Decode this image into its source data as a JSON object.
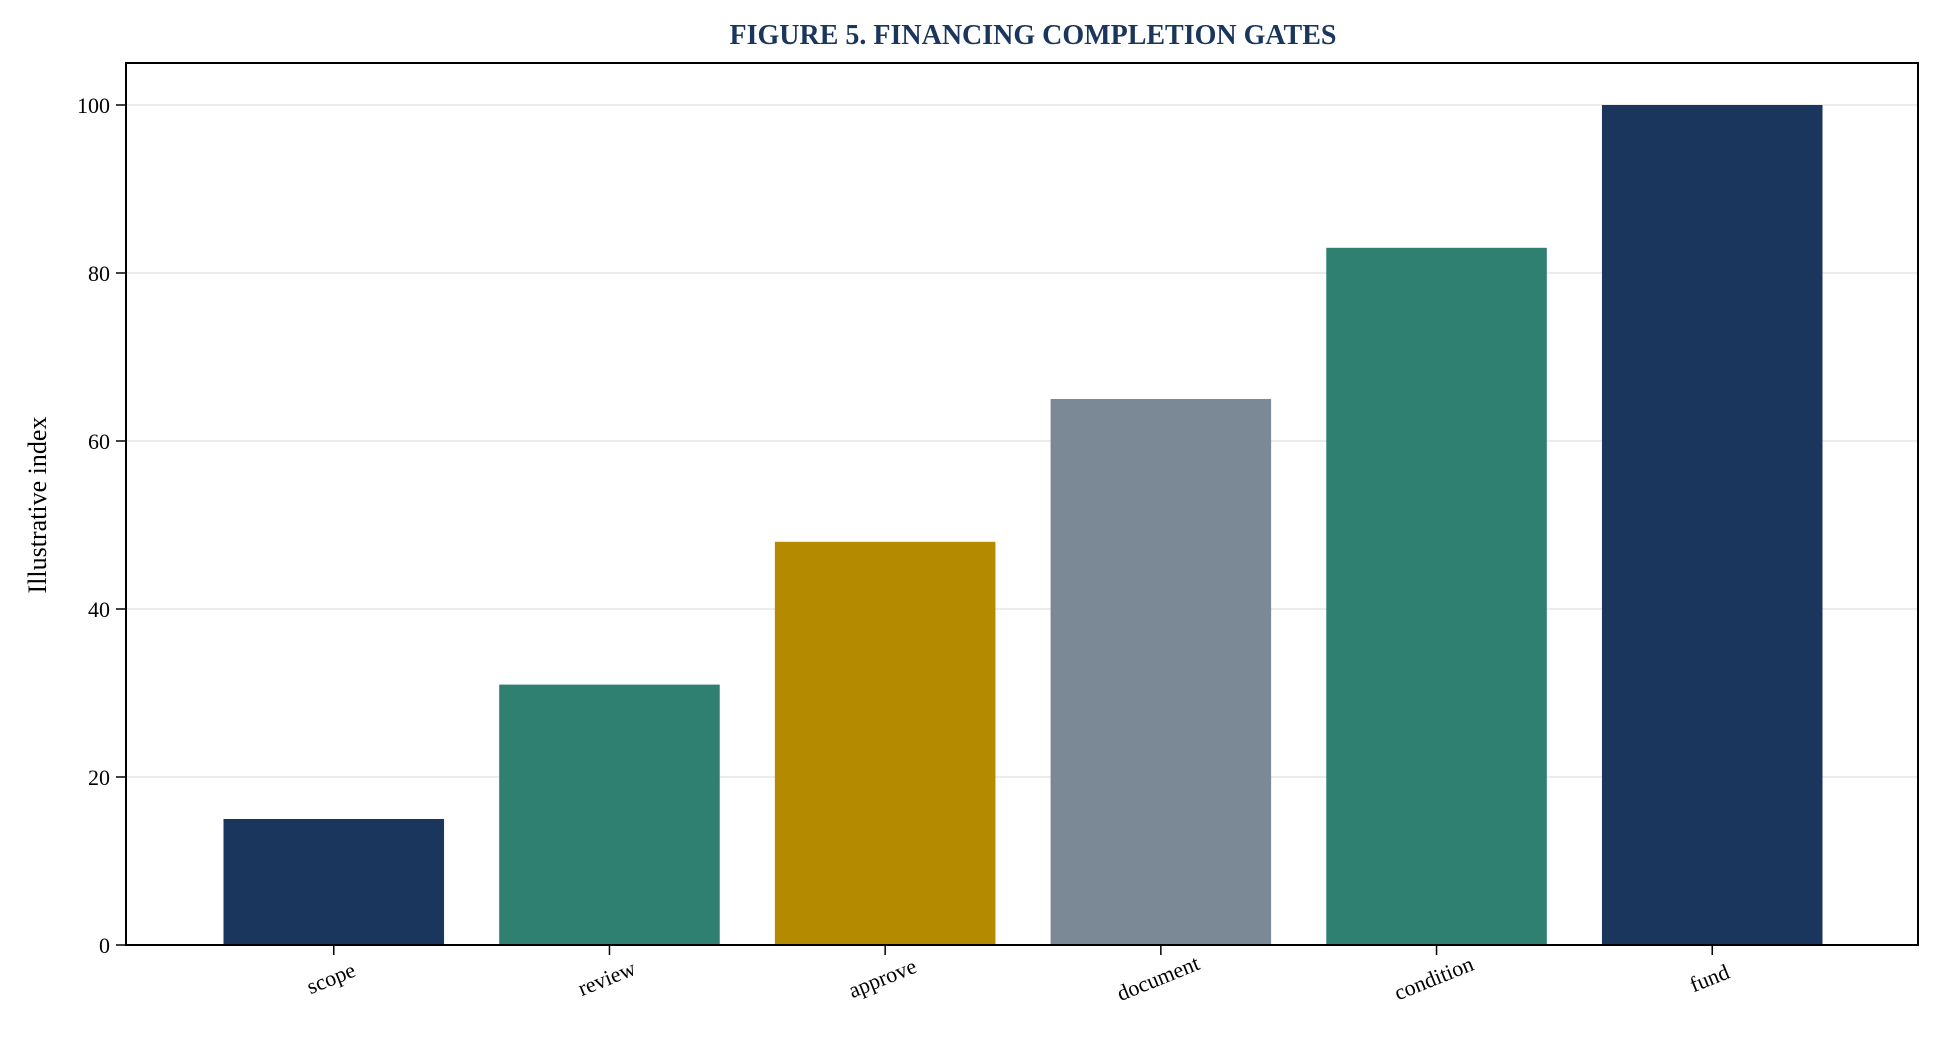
{
  "chart_data": {
    "type": "bar",
    "title": "FIGURE 5. FINANCING COMPLETION GATES",
    "xlabel": "",
    "ylabel": "Illustrative index",
    "categories": [
      "scope",
      "review",
      "approve",
      "document",
      "condition",
      "fund"
    ],
    "values": [
      15,
      31,
      48,
      65,
      83,
      100
    ],
    "bar_colors": [
      "#1a365d",
      "#2f8070",
      "#b38a00",
      "#7b8896",
      "#2f8070",
      "#1a365d"
    ],
    "title_color": "#1a365d",
    "ylim": [
      0,
      105
    ],
    "yticks": [
      0,
      20,
      40,
      60,
      80,
      100
    ],
    "grid": "horizontal",
    "legend": "none"
  }
}
